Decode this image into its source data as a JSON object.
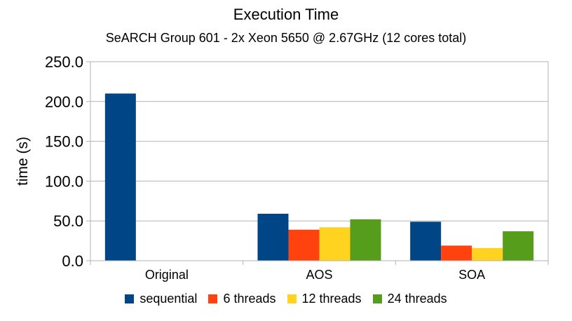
{
  "chart_data": {
    "type": "bar",
    "title": "Execution Time",
    "subtitle": "SeARCH Group 601 - 2x Xeon 5650 @ 2.67GHz (12 cores total)",
    "xlabel": "",
    "ylabel": "time (s)",
    "ylim": [
      0,
      250
    ],
    "yticks": [
      "0.0",
      "50.0",
      "100.0",
      "150.0",
      "200.0",
      "250.0"
    ],
    "categories": [
      "Original",
      "AOS",
      "SOA"
    ],
    "series": [
      {
        "name": "sequential",
        "color": "#004586",
        "values": [
          210,
          59,
          49
        ]
      },
      {
        "name": "6 threads",
        "color": "#ff420e",
        "values": [
          0,
          39,
          19
        ]
      },
      {
        "name": "12 threads",
        "color": "#ffd320",
        "values": [
          0,
          42,
          16
        ]
      },
      {
        "name": "24 threads",
        "color": "#579d1c",
        "values": [
          0,
          52,
          37
        ]
      }
    ],
    "grid": true,
    "legend_position": "bottom"
  }
}
